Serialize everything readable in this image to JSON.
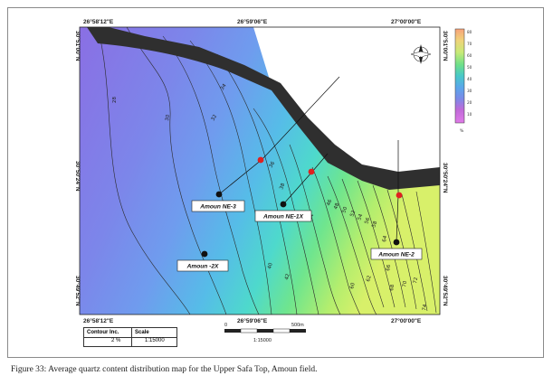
{
  "map": {
    "coords": {
      "top_left": "26°58'12\"E",
      "top_mid": "26°59'06\"E",
      "top_right": "27°00'00\"E",
      "bottom_left": "26°58'12\"E",
      "bottom_mid": "26°59'06\"E",
      "bottom_right": "27°00'00\"E",
      "left_top": "30°51'00\"N",
      "left_mid": "30°50'24\"N",
      "left_bottom": "30°49'52\"N",
      "right_top": "30°51'00\"N",
      "right_mid": "30°50'24\"N",
      "right_bottom": "30°49'52\"N"
    },
    "wells": [
      {
        "name": "Amoun NE-3"
      },
      {
        "name": "Amoun NE-1X"
      },
      {
        "name": "Amoun -2X"
      },
      {
        "name": "Amoun NE-2"
      }
    ],
    "contour_labels": [
      "28",
      "30",
      "32",
      "34",
      "36",
      "38",
      "40",
      "42",
      "44",
      "46",
      "48",
      "50",
      "52",
      "54",
      "56",
      "58",
      "60",
      "62",
      "64",
      "66",
      "68",
      "70",
      "72",
      "74"
    ],
    "scale_bar": {
      "zero": "0",
      "end": "500m",
      "ratio": "1:15000"
    },
    "legend_table": {
      "contour_header": "Contour Inc.",
      "contour_value": "2 %",
      "scale_header": "Scale",
      "scale_value": "1:15000"
    },
    "colorbar": {
      "ticks": [
        "80",
        "70",
        "60",
        "50",
        "40",
        "30",
        "20",
        "10"
      ],
      "unit": "%",
      "colors": [
        "#f7a37a",
        "#f0d27a",
        "#c8ea77",
        "#6fe089",
        "#48c8c8",
        "#5aa7ea",
        "#7a8ae8",
        "#9a6ae0",
        "#c06ad8",
        "#e07ae8"
      ]
    }
  },
  "caption": "Figure 33: Average quartz content distribution map for the Upper Safa Top, Amoun field."
}
